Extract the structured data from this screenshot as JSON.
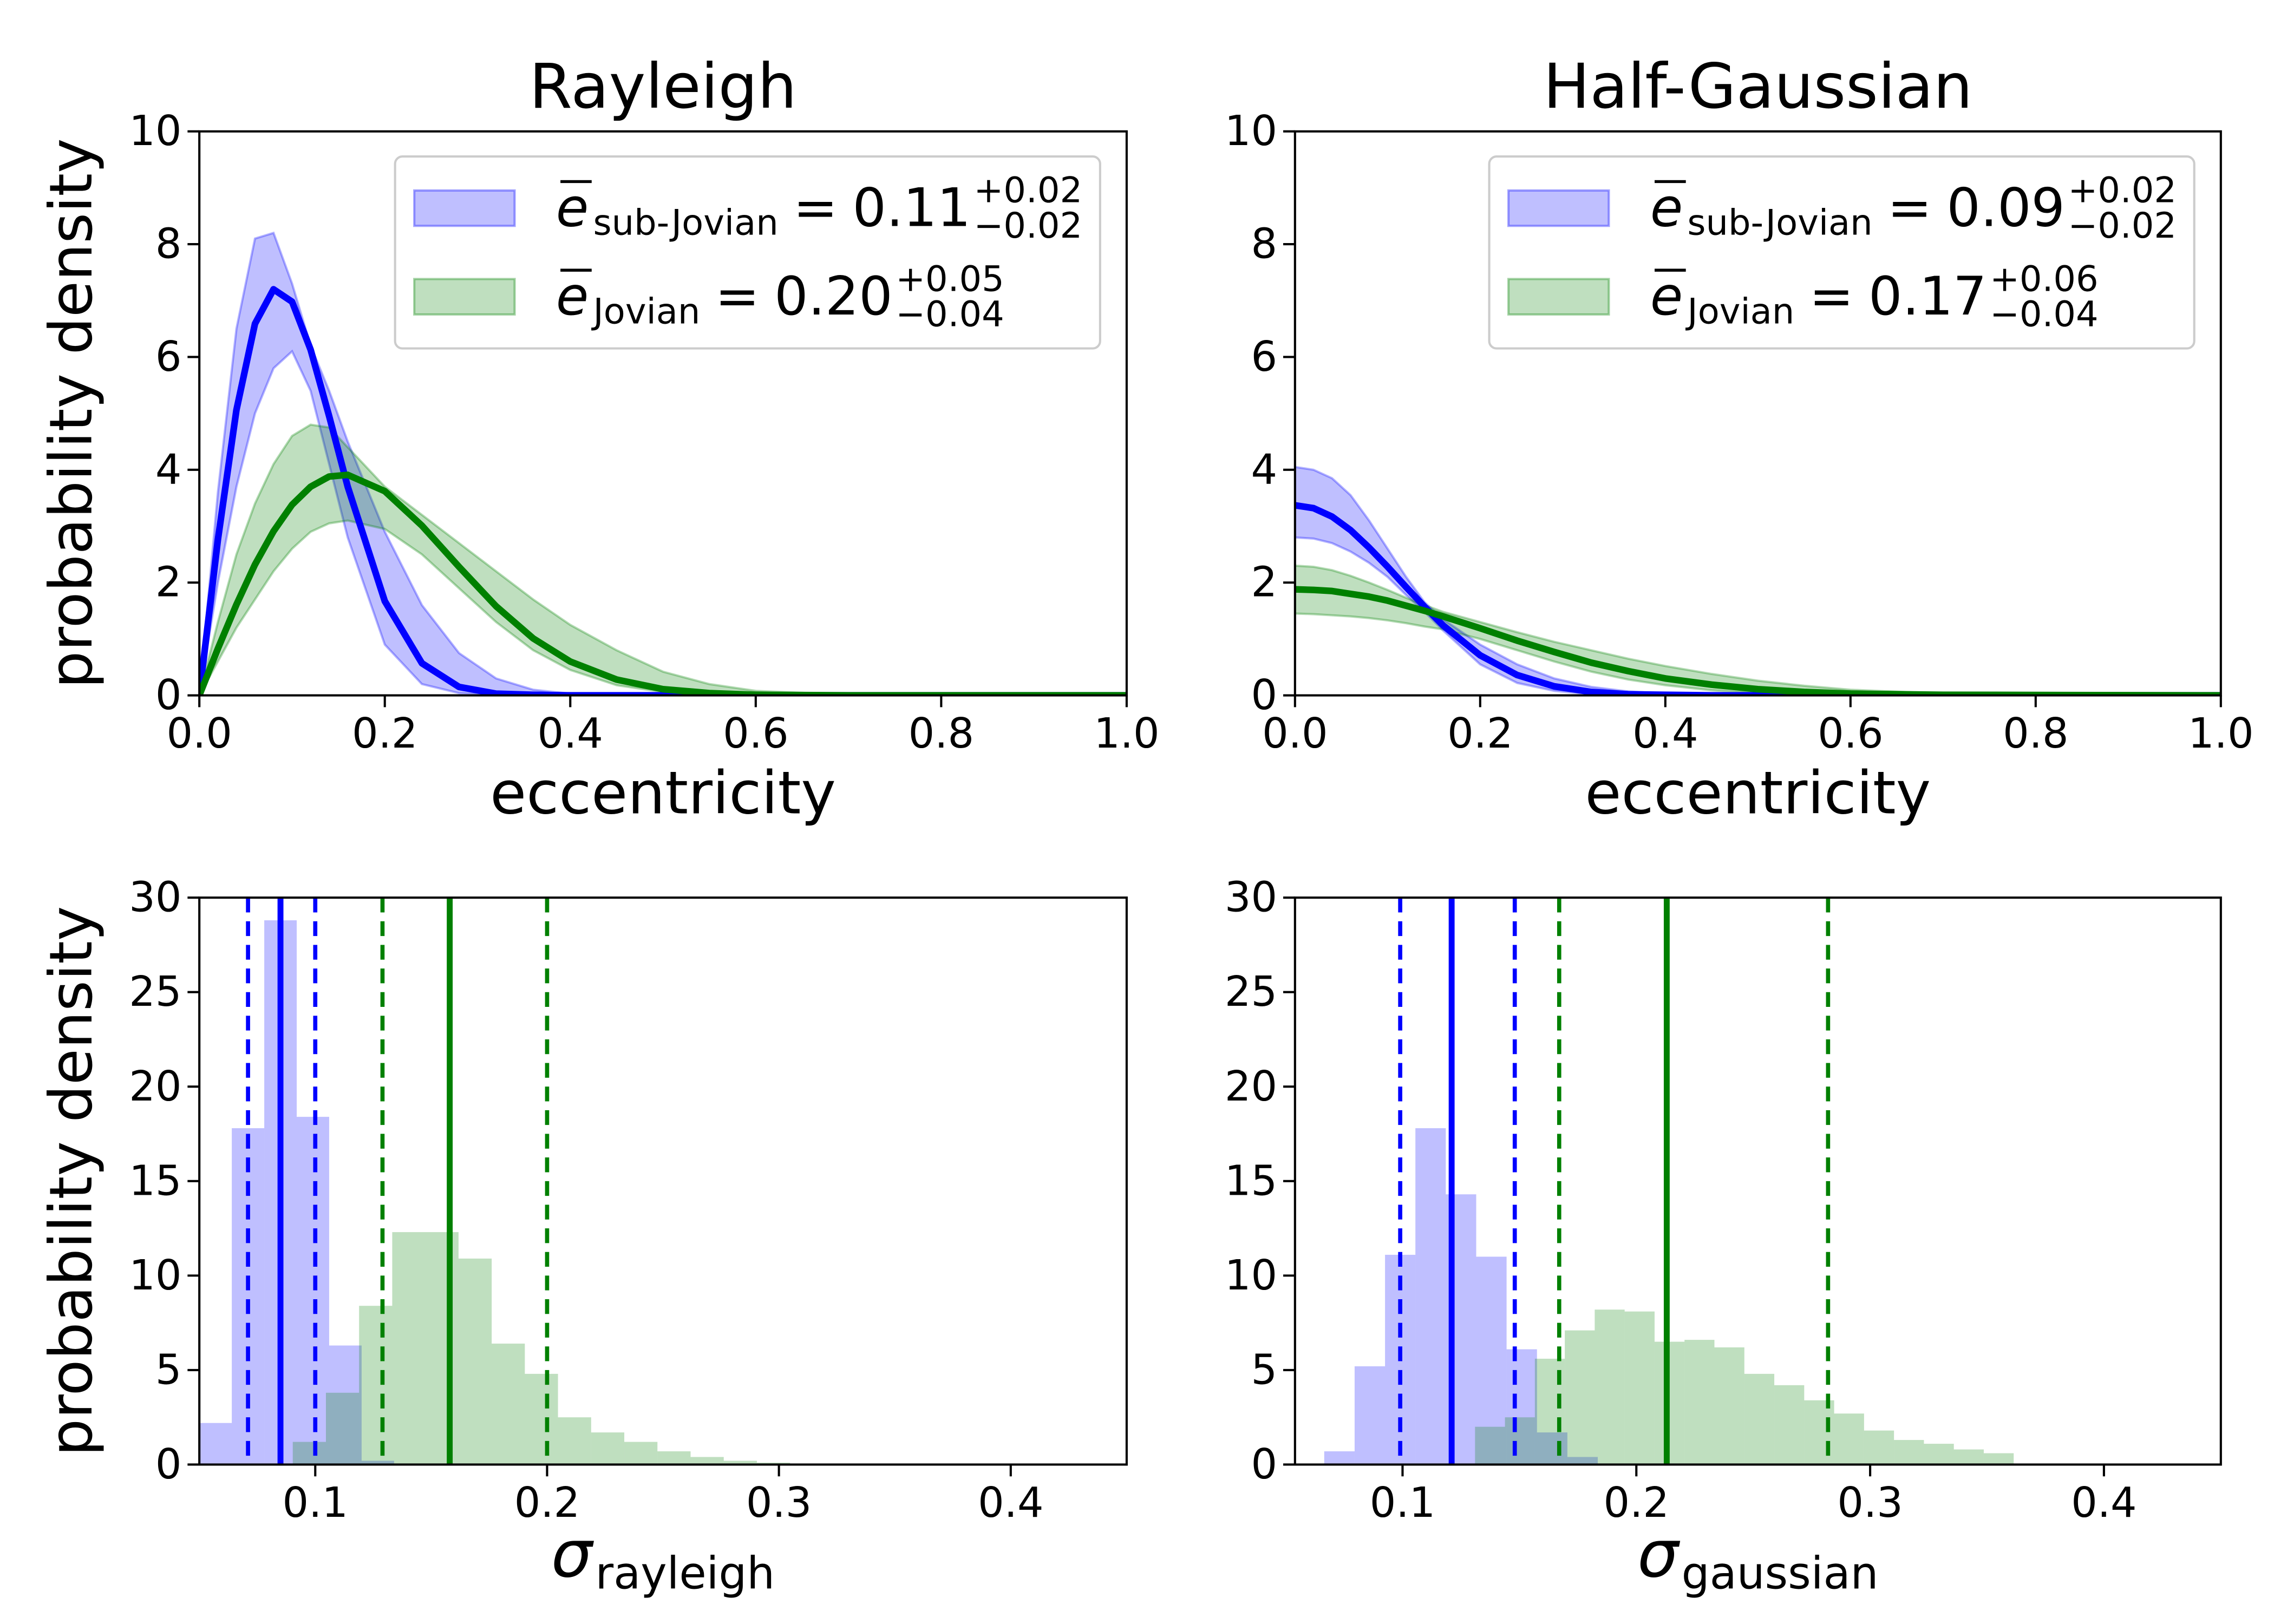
{
  "chart_data": [
    {
      "type": "line",
      "title": "Rayleigh",
      "x_label": "eccentricity",
      "y_label": "probability density",
      "xlim": [
        0,
        1
      ],
      "ylim": [
        0,
        10
      ],
      "xticks": [
        {
          "value": 0,
          "label": "0.0"
        },
        0.2,
        0.4,
        0.6,
        0.8,
        {
          "value": 1,
          "label": "1.0"
        }
      ],
      "yticks": [
        0,
        2,
        4,
        6,
        8,
        10
      ],
      "legend": {
        "loc": "upper right",
        "symbol": "e",
        "relation": "="
      },
      "x": [
        0,
        0.02,
        0.04,
        0.06,
        0.08,
        0.1,
        0.12,
        0.14,
        0.16,
        0.2,
        0.24,
        0.28,
        0.32,
        0.36,
        0.4,
        0.45,
        0.5,
        0.55,
        0.6,
        0.7,
        1.0
      ],
      "series": [
        {
          "name": "sub-Jovian",
          "color": "#0000ff",
          "mean": "0.11",
          "mean_upper": "+0.02",
          "mean_lower": "−0.02",
          "values": [
            0,
            2.76,
            5.06,
            6.59,
            7.2,
            6.98,
            6.13,
            4.95,
            3.7,
            1.67,
            0.57,
            0.15,
            0.03,
            0.01,
            0,
            0,
            0,
            0,
            0,
            0,
            0
          ],
          "upper": [
            0,
            3.6,
            6.5,
            8.1,
            8.2,
            7.3,
            6.2,
            5.4,
            4.5,
            2.9,
            1.6,
            0.75,
            0.3,
            0.1,
            0.03,
            0,
            0,
            0,
            0,
            0,
            0
          ],
          "lower": [
            0,
            2.0,
            3.7,
            5.0,
            5.8,
            6.1,
            5.4,
            4.1,
            2.8,
            0.9,
            0.2,
            0.04,
            0,
            0,
            0,
            0,
            0,
            0,
            0,
            0,
            0
          ]
        },
        {
          "name": "Jovian",
          "color": "#008000",
          "mean": "0.20",
          "mean_upper": "+0.05",
          "mean_lower": "−0.04",
          "values": [
            0,
            0.83,
            1.61,
            2.32,
            2.91,
            3.38,
            3.7,
            3.88,
            3.91,
            3.62,
            3.01,
            2.28,
            1.58,
            1.01,
            0.6,
            0.28,
            0.11,
            0.04,
            0.01,
            0,
            0
          ],
          "upper": [
            0,
            1.3,
            2.5,
            3.4,
            4.1,
            4.6,
            4.8,
            4.75,
            4.4,
            3.7,
            3.2,
            2.7,
            2.2,
            1.7,
            1.25,
            0.8,
            0.42,
            0.2,
            0.08,
            0.01,
            0
          ],
          "lower": [
            0,
            0.6,
            1.2,
            1.7,
            2.2,
            2.6,
            2.9,
            3.05,
            3.1,
            2.95,
            2.5,
            1.9,
            1.3,
            0.8,
            0.45,
            0.18,
            0.06,
            0.02,
            0,
            0,
            0
          ]
        }
      ]
    },
    {
      "type": "line",
      "title": "Half-Gaussian",
      "x_label": "eccentricity",
      "xlim": [
        0,
        1
      ],
      "ylim": [
        0,
        10
      ],
      "xticks": [
        {
          "value": 0,
          "label": "0.0"
        },
        0.2,
        0.4,
        0.6,
        0.8,
        {
          "value": 1,
          "label": "1.0"
        }
      ],
      "yticks": [
        0,
        2,
        4,
        6,
        8,
        10
      ],
      "legend": {
        "loc": "upper right",
        "symbol": "e",
        "relation": "="
      },
      "x": [
        0,
        0.02,
        0.04,
        0.06,
        0.08,
        0.1,
        0.12,
        0.14,
        0.16,
        0.2,
        0.24,
        0.28,
        0.32,
        0.36,
        0.4,
        0.45,
        0.5,
        0.55,
        0.6,
        0.7,
        1.0
      ],
      "series": [
        {
          "name": "sub-Jovian",
          "color": "#0000ff",
          "mean": "0.09",
          "mean_upper": "+0.02",
          "mean_lower": "−0.02",
          "values": [
            3.37,
            3.32,
            3.17,
            2.93,
            2.62,
            2.28,
            1.92,
            1.57,
            1.24,
            0.71,
            0.36,
            0.16,
            0.06,
            0.02,
            0.01,
            0,
            0,
            0,
            0,
            0,
            0
          ],
          "upper": [
            4.05,
            4.0,
            3.85,
            3.55,
            3.1,
            2.6,
            2.1,
            1.65,
            1.35,
            0.9,
            0.55,
            0.3,
            0.15,
            0.07,
            0.03,
            0.01,
            0,
            0,
            0,
            0,
            0
          ],
          "lower": [
            2.8,
            2.78,
            2.7,
            2.55,
            2.35,
            2.1,
            1.78,
            1.48,
            1.15,
            0.55,
            0.22,
            0.08,
            0.02,
            0,
            0,
            0,
            0,
            0,
            0,
            0,
            0
          ]
        },
        {
          "name": "Jovian",
          "color": "#008000",
          "mean": "0.17",
          "mean_upper": "+0.06",
          "mean_lower": "−0.04",
          "values": [
            1.88,
            1.87,
            1.85,
            1.8,
            1.75,
            1.68,
            1.59,
            1.5,
            1.4,
            1.19,
            0.97,
            0.77,
            0.58,
            0.43,
            0.3,
            0.19,
            0.11,
            0.06,
            0.03,
            0.01,
            0
          ],
          "upper": [
            2.3,
            2.28,
            2.22,
            2.12,
            2.0,
            1.87,
            1.73,
            1.6,
            1.48,
            1.3,
            1.12,
            0.95,
            0.8,
            0.65,
            0.52,
            0.38,
            0.26,
            0.17,
            0.1,
            0.03,
            0
          ],
          "lower": [
            1.45,
            1.44,
            1.42,
            1.4,
            1.37,
            1.33,
            1.28,
            1.22,
            1.17,
            1.0,
            0.8,
            0.6,
            0.42,
            0.28,
            0.18,
            0.09,
            0.04,
            0.02,
            0.01,
            0,
            0
          ]
        }
      ]
    },
    {
      "type": "histogram",
      "x_label": {
        "symbol": "σ",
        "subscript": "rayleigh"
      },
      "y_label": "probability density",
      "xlim": [
        0.05,
        0.45
      ],
      "ylim": [
        0,
        30
      ],
      "xticks": [
        0.1,
        0.2,
        0.3,
        0.4
      ],
      "yticks": [
        0,
        5,
        10,
        15,
        20,
        25,
        30
      ],
      "series": [
        {
          "color": "#0000ff",
          "bins": [
            0.05,
            0.064,
            0.078,
            0.092,
            0.106,
            0.12,
            0.134
          ],
          "values": [
            2.2,
            17.8,
            28.8,
            18.4,
            6.3,
            0.2
          ],
          "median": 0.085,
          "interval": [
            0.071,
            0.1
          ]
        },
        {
          "color": "#008000",
          "bins": [
            0.0903,
            0.1046,
            0.1189,
            0.1332,
            0.1475,
            0.1618,
            0.1761,
            0.1904,
            0.2047,
            0.219,
            0.2333,
            0.2476,
            0.2619,
            0.2762,
            0.2905,
            0.3048
          ],
          "values": [
            1.2,
            3.8,
            8.4,
            12.3,
            12.3,
            10.9,
            6.4,
            4.8,
            2.5,
            1.7,
            1.2,
            0.7,
            0.4,
            0.2,
            0.1
          ],
          "median": 0.158,
          "interval": [
            0.129,
            0.2
          ]
        }
      ]
    },
    {
      "type": "histogram",
      "x_label": {
        "symbol": "σ",
        "subscript": "gaussian"
      },
      "xlim": [
        0.054,
        0.45
      ],
      "ylim": [
        0,
        30
      ],
      "xticks": [
        0.1,
        0.2,
        0.3,
        0.4
      ],
      "yticks": [
        0,
        5,
        10,
        15,
        20,
        25,
        30
      ],
      "series": [
        {
          "color": "#0000ff",
          "bins": [
            0.0665,
            0.0795,
            0.0925,
            0.1055,
            0.1185,
            0.1315,
            0.1445,
            0.1575,
            0.1705,
            0.1835
          ],
          "values": [
            0.7,
            5.2,
            11.1,
            17.8,
            14.3,
            11.0,
            6.1,
            1.7,
            0.4
          ],
          "median": 0.121,
          "interval": [
            0.099,
            0.148
          ]
        },
        {
          "color": "#008000",
          "bins": [
            0.131,
            0.1438,
            0.1566,
            0.1694,
            0.1822,
            0.195,
            0.2078,
            0.2206,
            0.2334,
            0.2462,
            0.259,
            0.2718,
            0.2846,
            0.2974,
            0.3102,
            0.323,
            0.3358,
            0.3486,
            0.3614
          ],
          "values": [
            2.0,
            2.5,
            5.6,
            7.1,
            8.2,
            8.1,
            6.5,
            6.6,
            6.2,
            4.8,
            4.2,
            3.4,
            2.7,
            1.8,
            1.3,
            1.1,
            0.8,
            0.6
          ],
          "median": 0.213,
          "interval": [
            0.167,
            0.282
          ]
        }
      ]
    }
  ]
}
